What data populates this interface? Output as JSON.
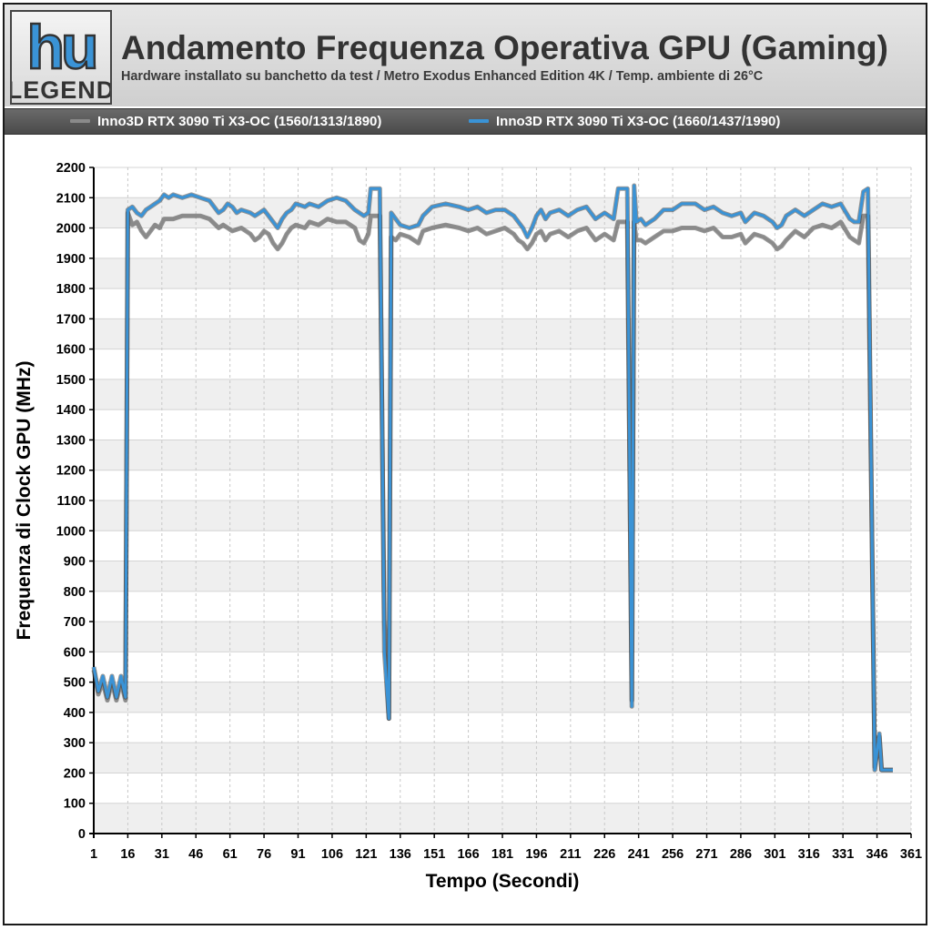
{
  "logo": {
    "top_text": "hu",
    "bottom_text": "LEGEND"
  },
  "header": {
    "title": "Andamento Frequenza Operativa GPU (Gaming)",
    "subtitle": "Hardware installato su banchetto da test / Metro Exodus Enhanced Edition 4K / Temp. ambiente di 26°C"
  },
  "legend": [
    {
      "label": "Inno3D RTX 3090 Ti X3-OC (1560/1313/1890)",
      "color": "#8a8a8a"
    },
    {
      "label": "Inno3D RTX 3090 Ti X3-OC (1660/1437/1990)",
      "color": "#3a93d6"
    }
  ],
  "chart_data": {
    "type": "line",
    "title": "Andamento Frequenza Operativa GPU (Gaming)",
    "xlabel": "Tempo (Secondi)",
    "ylabel": "Frequenza di Clock GPU (MHz)",
    "xlim": [
      1,
      361
    ],
    "ylim": [
      0,
      2200
    ],
    "x_ticks": [
      "1",
      "16",
      "31",
      "46",
      "61",
      "76",
      "91",
      "106",
      "121",
      "136",
      "151",
      "166",
      "181",
      "196",
      "211",
      "226",
      "241",
      "256",
      "271",
      "286",
      "301",
      "316",
      "331",
      "346",
      "361"
    ],
    "y_ticks": [
      0,
      100,
      200,
      300,
      400,
      500,
      600,
      700,
      800,
      900,
      1000,
      1100,
      1200,
      1300,
      1400,
      1500,
      1600,
      1700,
      1800,
      1900,
      2000,
      2100,
      2200
    ],
    "grid": true,
    "legend_position": "top",
    "series": [
      {
        "name": "Inno3D RTX 3090 Ti X3-OC (1560/1313/1890)",
        "color": "#8a8a8a",
        "points": [
          [
            1,
            540
          ],
          [
            3,
            460
          ],
          [
            5,
            500
          ],
          [
            7,
            440
          ],
          [
            9,
            500
          ],
          [
            11,
            440
          ],
          [
            13,
            500
          ],
          [
            15,
            440
          ],
          [
            16,
            2050
          ],
          [
            18,
            2010
          ],
          [
            20,
            2020
          ],
          [
            22,
            1990
          ],
          [
            24,
            1970
          ],
          [
            26,
            1990
          ],
          [
            28,
            2010
          ],
          [
            30,
            2000
          ],
          [
            32,
            2030
          ],
          [
            36,
            2030
          ],
          [
            40,
            2040
          ],
          [
            48,
            2040
          ],
          [
            52,
            2030
          ],
          [
            56,
            2000
          ],
          [
            58,
            2010
          ],
          [
            60,
            2000
          ],
          [
            62,
            1990
          ],
          [
            66,
            2000
          ],
          [
            70,
            1980
          ],
          [
            72,
            1960
          ],
          [
            74,
            1970
          ],
          [
            76,
            1990
          ],
          [
            78,
            1980
          ],
          [
            80,
            1950
          ],
          [
            82,
            1930
          ],
          [
            84,
            1950
          ],
          [
            86,
            1980
          ],
          [
            88,
            2000
          ],
          [
            90,
            2010
          ],
          [
            94,
            2000
          ],
          [
            96,
            2020
          ],
          [
            100,
            2010
          ],
          [
            104,
            2030
          ],
          [
            108,
            2020
          ],
          [
            112,
            2020
          ],
          [
            116,
            2000
          ],
          [
            118,
            1960
          ],
          [
            120,
            1950
          ],
          [
            122,
            1980
          ],
          [
            123,
            2040
          ],
          [
            127,
            2040
          ],
          [
            129,
            700
          ],
          [
            131,
            380
          ],
          [
            132,
            1970
          ],
          [
            134,
            1960
          ],
          [
            136,
            1980
          ],
          [
            140,
            1970
          ],
          [
            144,
            1950
          ],
          [
            146,
            1990
          ],
          [
            150,
            2000
          ],
          [
            156,
            2010
          ],
          [
            162,
            2000
          ],
          [
            166,
            1990
          ],
          [
            170,
            2000
          ],
          [
            174,
            1980
          ],
          [
            178,
            1990
          ],
          [
            182,
            2000
          ],
          [
            186,
            1980
          ],
          [
            188,
            1960
          ],
          [
            190,
            1950
          ],
          [
            192,
            1930
          ],
          [
            194,
            1950
          ],
          [
            196,
            1980
          ],
          [
            198,
            1990
          ],
          [
            200,
            1960
          ],
          [
            202,
            1980
          ],
          [
            206,
            1990
          ],
          [
            210,
            1970
          ],
          [
            214,
            1990
          ],
          [
            218,
            2000
          ],
          [
            222,
            1960
          ],
          [
            226,
            1980
          ],
          [
            230,
            1960
          ],
          [
            232,
            2020
          ],
          [
            236,
            2020
          ],
          [
            238,
            440
          ],
          [
            239,
            2020
          ],
          [
            240,
            1960
          ],
          [
            242,
            1960
          ],
          [
            244,
            1950
          ],
          [
            248,
            1970
          ],
          [
            252,
            1990
          ],
          [
            256,
            1990
          ],
          [
            260,
            2000
          ],
          [
            266,
            2000
          ],
          [
            270,
            1990
          ],
          [
            274,
            2000
          ],
          [
            278,
            1970
          ],
          [
            282,
            1970
          ],
          [
            286,
            1980
          ],
          [
            288,
            1950
          ],
          [
            292,
            1980
          ],
          [
            296,
            1970
          ],
          [
            300,
            1950
          ],
          [
            302,
            1930
          ],
          [
            304,
            1940
          ],
          [
            306,
            1960
          ],
          [
            310,
            1990
          ],
          [
            314,
            1970
          ],
          [
            318,
            2000
          ],
          [
            322,
            2010
          ],
          [
            326,
            2000
          ],
          [
            330,
            2020
          ],
          [
            334,
            1970
          ],
          [
            336,
            1960
          ],
          [
            338,
            1950
          ],
          [
            340,
            2040
          ],
          [
            342,
            2040
          ],
          [
            345,
            220
          ],
          [
            347,
            320
          ],
          [
            348,
            210
          ],
          [
            353,
            210
          ]
        ]
      },
      {
        "name": "Inno3D RTX 3090 Ti X3-OC (1660/1437/1990)",
        "color": "#3a93d6",
        "points": [
          [
            1,
            550
          ],
          [
            3,
            470
          ],
          [
            5,
            520
          ],
          [
            7,
            450
          ],
          [
            9,
            520
          ],
          [
            11,
            450
          ],
          [
            13,
            520
          ],
          [
            15,
            450
          ],
          [
            16,
            2060
          ],
          [
            18,
            2070
          ],
          [
            20,
            2050
          ],
          [
            22,
            2040
          ],
          [
            24,
            2060
          ],
          [
            26,
            2070
          ],
          [
            28,
            2080
          ],
          [
            30,
            2090
          ],
          [
            32,
            2110
          ],
          [
            34,
            2100
          ],
          [
            36,
            2110
          ],
          [
            40,
            2100
          ],
          [
            44,
            2110
          ],
          [
            48,
            2100
          ],
          [
            52,
            2090
          ],
          [
            54,
            2070
          ],
          [
            56,
            2050
          ],
          [
            58,
            2060
          ],
          [
            60,
            2080
          ],
          [
            62,
            2070
          ],
          [
            64,
            2050
          ],
          [
            66,
            2060
          ],
          [
            70,
            2050
          ],
          [
            72,
            2040
          ],
          [
            74,
            2050
          ],
          [
            76,
            2060
          ],
          [
            78,
            2040
          ],
          [
            80,
            2020
          ],
          [
            82,
            2000
          ],
          [
            84,
            2030
          ],
          [
            86,
            2050
          ],
          [
            88,
            2060
          ],
          [
            90,
            2080
          ],
          [
            94,
            2070
          ],
          [
            96,
            2080
          ],
          [
            100,
            2070
          ],
          [
            104,
            2090
          ],
          [
            108,
            2100
          ],
          [
            112,
            2090
          ],
          [
            116,
            2060
          ],
          [
            118,
            2050
          ],
          [
            120,
            2040
          ],
          [
            122,
            2050
          ],
          [
            123,
            2130
          ],
          [
            127,
            2130
          ],
          [
            129,
            600
          ],
          [
            131,
            380
          ],
          [
            132,
            2050
          ],
          [
            134,
            2030
          ],
          [
            136,
            2010
          ],
          [
            140,
            2000
          ],
          [
            144,
            2010
          ],
          [
            146,
            2040
          ],
          [
            150,
            2070
          ],
          [
            156,
            2080
          ],
          [
            162,
            2070
          ],
          [
            166,
            2060
          ],
          [
            170,
            2070
          ],
          [
            174,
            2050
          ],
          [
            178,
            2060
          ],
          [
            182,
            2060
          ],
          [
            186,
            2040
          ],
          [
            188,
            2020
          ],
          [
            190,
            2000
          ],
          [
            192,
            1970
          ],
          [
            194,
            2000
          ],
          [
            196,
            2040
          ],
          [
            198,
            2060
          ],
          [
            200,
            2030
          ],
          [
            202,
            2050
          ],
          [
            206,
            2060
          ],
          [
            210,
            2040
          ],
          [
            214,
            2060
          ],
          [
            218,
            2070
          ],
          [
            222,
            2030
          ],
          [
            226,
            2050
          ],
          [
            230,
            2030
          ],
          [
            232,
            2130
          ],
          [
            236,
            2130
          ],
          [
            238,
            420
          ],
          [
            239,
            2140
          ],
          [
            240,
            2020
          ],
          [
            242,
            2030
          ],
          [
            244,
            2010
          ],
          [
            248,
            2030
          ],
          [
            252,
            2060
          ],
          [
            256,
            2060
          ],
          [
            260,
            2080
          ],
          [
            266,
            2080
          ],
          [
            270,
            2060
          ],
          [
            274,
            2070
          ],
          [
            278,
            2050
          ],
          [
            282,
            2040
          ],
          [
            286,
            2050
          ],
          [
            288,
            2020
          ],
          [
            292,
            2050
          ],
          [
            296,
            2040
          ],
          [
            300,
            2020
          ],
          [
            302,
            2000
          ],
          [
            304,
            2010
          ],
          [
            306,
            2040
          ],
          [
            310,
            2060
          ],
          [
            314,
            2040
          ],
          [
            318,
            2060
          ],
          [
            322,
            2080
          ],
          [
            326,
            2070
          ],
          [
            330,
            2080
          ],
          [
            334,
            2030
          ],
          [
            336,
            2020
          ],
          [
            338,
            2020
          ],
          [
            340,
            2120
          ],
          [
            342,
            2130
          ],
          [
            345,
            210
          ],
          [
            347,
            330
          ],
          [
            348,
            210
          ],
          [
            353,
            210
          ]
        ]
      }
    ]
  }
}
